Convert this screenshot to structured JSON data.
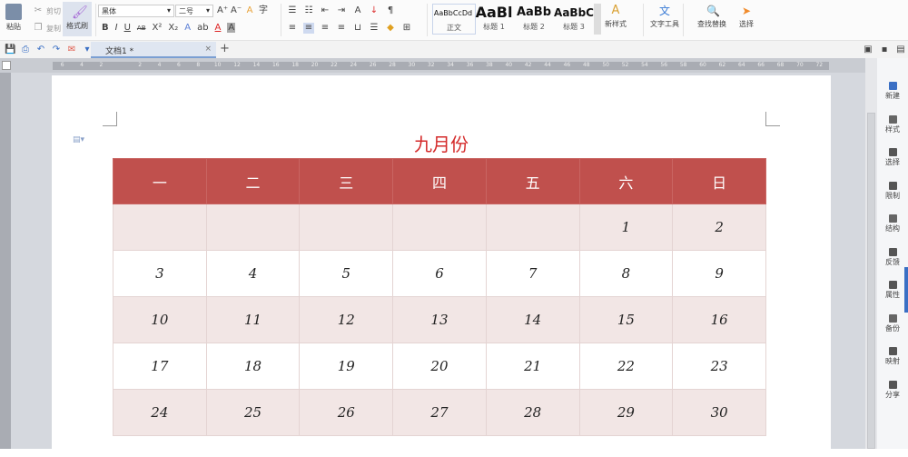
{
  "toolbar": {
    "paste": "粘贴",
    "cut": "剪切",
    "copy": "复制",
    "format_painter": "格式刷",
    "font_name": "黑体",
    "font_size": "二号",
    "bold": "B",
    "italic": "I",
    "underline": "U",
    "strike": "AB",
    "superscript": "X²",
    "subscript": "X₂",
    "styles": [
      {
        "preview": "AaBbCcDd",
        "label": "正文"
      },
      {
        "preview": "AaBl",
        "label": "标题 1"
      },
      {
        "preview": "AaBb",
        "label": "标题 2"
      },
      {
        "preview": "AaBbC",
        "label": "标题 3"
      }
    ],
    "new_style": "新样式",
    "text_tools": "文字工具",
    "find_replace": "查找替换",
    "select": "选择"
  },
  "tabs": {
    "doc": "文档1 *",
    "add": "+",
    "close": "×"
  },
  "ruler": {
    "marks": [
      "6",
      "4",
      "2",
      "",
      "2",
      "4",
      "6",
      "8",
      "10",
      "12",
      "14",
      "16",
      "18",
      "20",
      "22",
      "24",
      "26",
      "28",
      "30",
      "32",
      "34",
      "36",
      "38",
      "40",
      "42",
      "44",
      "46",
      "48",
      "50",
      "52",
      "54",
      "56",
      "58",
      "60",
      "62",
      "64",
      "66",
      "68",
      "70",
      "72"
    ]
  },
  "document": {
    "title": "九月份",
    "title_color": "#d42a2a",
    "header_color": "#c0504d",
    "weekdays": [
      "一",
      "二",
      "三",
      "四",
      "五",
      "六",
      "日"
    ],
    "weeks": [
      [
        "",
        "",
        "",
        "",
        "",
        "1",
        "2"
      ],
      [
        "3",
        "4",
        "5",
        "6",
        "7",
        "8",
        "9"
      ],
      [
        "10",
        "11",
        "12",
        "13",
        "14",
        "15",
        "16"
      ],
      [
        "17",
        "18",
        "19",
        "20",
        "21",
        "22",
        "23"
      ],
      [
        "24",
        "25",
        "26",
        "27",
        "28",
        "29",
        "30"
      ]
    ]
  },
  "sidebar": [
    "新建",
    "样式",
    "选择",
    "限制",
    "结构",
    "反馈",
    "属性",
    "备份",
    "映射",
    "分享"
  ]
}
